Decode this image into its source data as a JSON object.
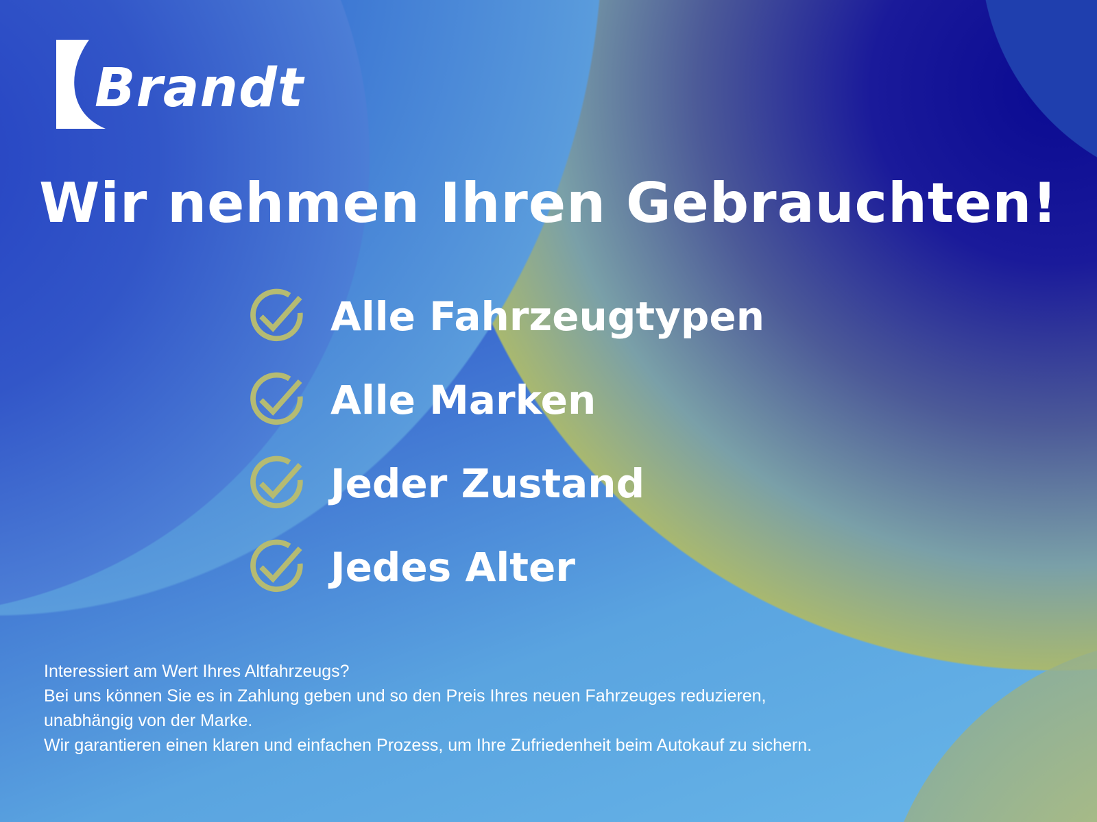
{
  "brand": {
    "name": "Brandt"
  },
  "colors": {
    "check": "#b5bb72",
    "text": "#ffffff",
    "deep_blue": "#0a0a92",
    "light_blue": "#68b6e8",
    "olive": "#c6c468"
  },
  "headline": "Wir nehmen Ihren Gebrauchten!",
  "features": [
    {
      "icon": "check-circle-icon",
      "label": "Alle Fahrzeugtypen"
    },
    {
      "icon": "check-circle-icon",
      "label": "Alle Marken"
    },
    {
      "icon": "check-circle-icon",
      "label": "Jeder Zustand"
    },
    {
      "icon": "check-circle-icon",
      "label": "Jedes Alter"
    }
  ],
  "body_lines": [
    "Interessiert am Wert Ihres Altfahrzeugs?",
    "Bei uns können Sie es in Zahlung geben und so den Preis Ihres neuen Fahrzeuges reduzieren,",
    "unabhängig von der Marke.",
    "Wir garantieren einen klaren und einfachen Prozess, um Ihre Zufriedenheit beim Autokauf zu sichern."
  ]
}
